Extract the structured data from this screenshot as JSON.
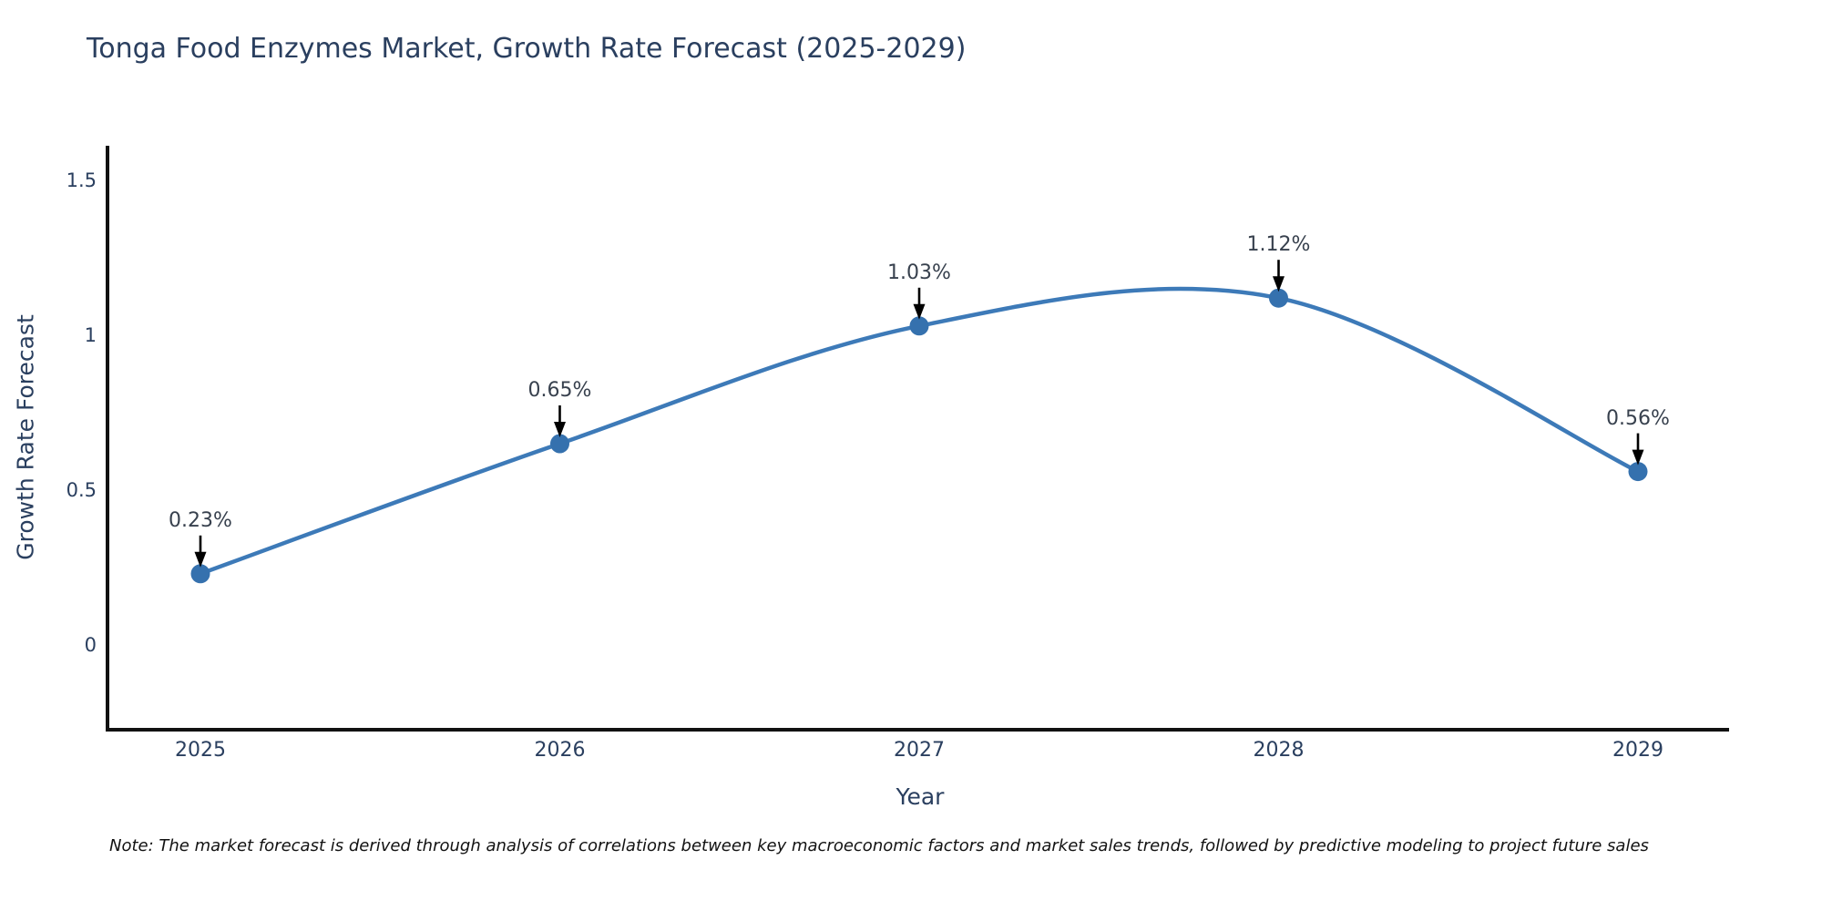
{
  "title": "Tonga Food Enzymes Market, Growth Rate Forecast (2025-2029)",
  "note": "Note: The market forecast is derived through analysis of correlations between key macroeconomic factors and market sales trends, followed by predictive modeling to project future sales",
  "chart_data": {
    "type": "line",
    "line_shape": "spline",
    "title": "Tonga Food Enzymes Market, Growth Rate Forecast (2025-2029)",
    "xlabel": "Year",
    "ylabel": "Growth Rate Forecast",
    "categories": [
      "2025",
      "2026",
      "2027",
      "2028",
      "2029"
    ],
    "values": [
      0.23,
      0.65,
      1.03,
      1.12,
      0.56
    ],
    "point_labels": [
      "0.23%",
      "0.65%",
      "1.03%",
      "1.12%",
      "0.56%"
    ],
    "yticks": [
      0,
      0.5,
      1,
      1.5
    ],
    "ytick_labels": [
      "0",
      "0.5",
      "1",
      "1.5"
    ],
    "ylim": [
      -0.27,
      1.61
    ],
    "grid": false,
    "legend": "none",
    "line_color": "#3d7ab8",
    "marker_color": "#3571ae",
    "axis_color": "#111111",
    "text_color": "#2a3f5f",
    "annotation_text_color": "#38414e",
    "annotation_arrow_color": "#000000",
    "background_color": "#ffffff"
  }
}
